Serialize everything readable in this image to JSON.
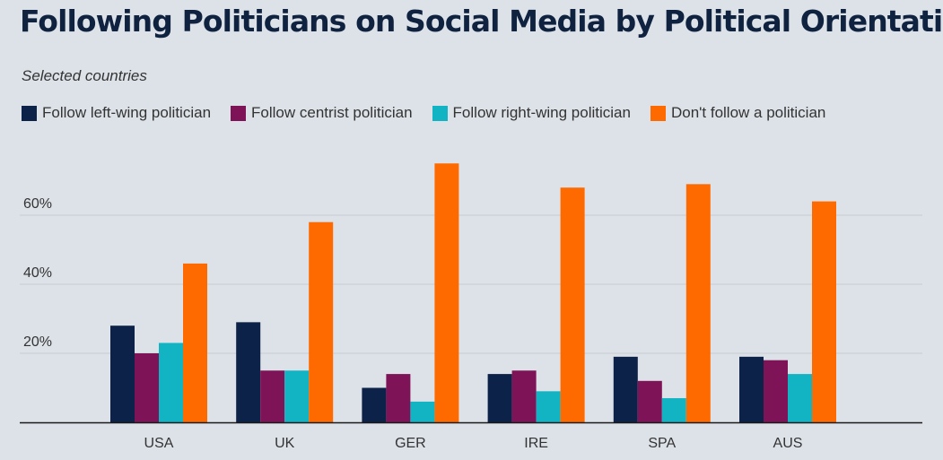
{
  "title": "Following Politicians on Social Media by Political Orientation",
  "subtitle": "Selected countries",
  "chart_data": {
    "type": "bar",
    "categories": [
      "USA",
      "UK",
      "GER",
      "IRE",
      "SPA",
      "AUS"
    ],
    "series": [
      {
        "name": "Follow left-wing politician",
        "color": "#0d2248",
        "values": [
          28,
          29,
          10,
          14,
          19,
          19
        ]
      },
      {
        "name": "Follow centrist politician",
        "color": "#7e1457",
        "values": [
          20,
          15,
          14,
          15,
          12,
          18
        ]
      },
      {
        "name": "Follow right-wing politician",
        "color": "#12b3c2",
        "values": [
          23,
          15,
          6,
          9,
          7,
          14
        ]
      },
      {
        "name": "Don't follow a politician",
        "color": "#ff6a00",
        "values": [
          46,
          58,
          75,
          68,
          69,
          64
        ]
      }
    ],
    "y_ticks": [
      20,
      40,
      60
    ],
    "y_tick_labels": [
      "20%",
      "40%",
      "60%"
    ],
    "ylim": [
      0,
      80
    ],
    "grid": true,
    "legend_position": "top-left"
  }
}
